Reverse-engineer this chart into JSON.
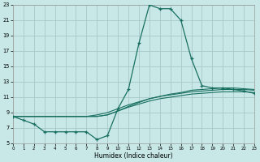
{
  "xlabel": "Humidex (Indice chaleur)",
  "background_color": "#c8e8e8",
  "grid_color": "#a8c8c8",
  "line_color": "#1a7060",
  "xlim": [
    0,
    23
  ],
  "ylim": [
    5,
    23
  ],
  "xticks": [
    0,
    1,
    2,
    3,
    4,
    5,
    6,
    7,
    8,
    9,
    10,
    11,
    12,
    13,
    14,
    15,
    16,
    17,
    18,
    19,
    20,
    21,
    22,
    23
  ],
  "yticks": [
    5,
    7,
    9,
    11,
    13,
    15,
    17,
    19,
    21,
    23
  ],
  "line1_x": [
    0,
    1,
    2,
    3,
    4,
    5,
    6,
    7,
    8,
    9,
    10,
    11,
    12,
    13,
    14,
    15,
    16,
    17,
    18,
    19,
    20,
    21,
    22,
    23
  ],
  "line1_y": [
    8.5,
    8.0,
    7.5,
    6.5,
    6.5,
    6.5,
    6.5,
    6.5,
    5.5,
    6.0,
    9.5,
    12.0,
    18.0,
    23.0,
    22.5,
    22.5,
    21.0,
    16.0,
    12.5,
    12.2,
    12.2,
    12.0,
    11.8,
    11.5
  ],
  "line2_x": [
    0,
    1,
    2,
    3,
    4,
    5,
    6,
    7,
    8,
    9,
    10,
    11,
    12,
    13,
    14,
    15,
    16,
    17,
    18,
    19,
    20,
    21,
    22,
    23
  ],
  "line2_y": [
    8.5,
    8.5,
    8.5,
    8.5,
    8.5,
    8.5,
    8.5,
    8.5,
    8.5,
    8.7,
    9.2,
    9.7,
    10.1,
    10.5,
    10.8,
    11.0,
    11.2,
    11.4,
    11.5,
    11.6,
    11.7,
    11.7,
    11.7,
    11.6
  ],
  "line3_x": [
    0,
    1,
    2,
    3,
    4,
    5,
    6,
    7,
    8,
    9,
    10,
    11,
    12,
    13,
    14,
    15,
    16,
    17,
    18,
    19,
    20,
    21,
    22,
    23
  ],
  "line3_y": [
    8.5,
    8.5,
    8.5,
    8.5,
    8.5,
    8.5,
    8.5,
    8.5,
    8.7,
    9.0,
    9.5,
    10.0,
    10.4,
    10.8,
    11.1,
    11.3,
    11.5,
    11.7,
    11.8,
    11.9,
    12.0,
    12.0,
    12.0,
    11.9
  ],
  "line4_x": [
    0,
    1,
    2,
    3,
    4,
    5,
    6,
    7,
    8,
    9,
    10,
    11,
    12,
    13,
    14,
    15,
    16,
    17,
    18,
    19,
    20,
    21,
    22,
    23
  ],
  "line4_y": [
    8.5,
    8.5,
    8.5,
    8.5,
    8.5,
    8.5,
    8.5,
    8.5,
    8.5,
    8.7,
    9.2,
    9.8,
    10.3,
    10.8,
    11.1,
    11.4,
    11.6,
    11.9,
    12.0,
    12.1,
    12.2,
    12.2,
    12.1,
    12.0
  ]
}
